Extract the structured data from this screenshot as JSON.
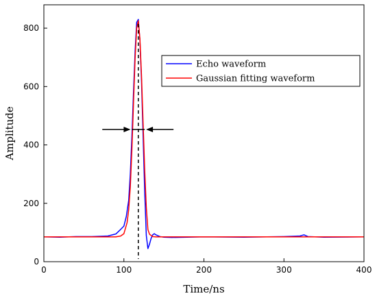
{
  "chart_data": {
    "type": "line",
    "xlabel": "Time/ns",
    "ylabel": "Amplitude",
    "xlim": [
      0,
      400
    ],
    "ylim": [
      0,
      880
    ],
    "xticks": [
      0,
      100,
      200,
      300,
      400
    ],
    "yticks": [
      0,
      200,
      400,
      600,
      800
    ],
    "grid": false,
    "legend_position": "top-right",
    "series": [
      {
        "name": "Echo waveform",
        "color": "#0000ff",
        "x": [
          0,
          20,
          40,
          60,
          80,
          90,
          95,
          100,
          103,
          106,
          108,
          110,
          112,
          114,
          116,
          118,
          120,
          122,
          124,
          126,
          128,
          130,
          132,
          134,
          136,
          138,
          140,
          145,
          150,
          160,
          200,
          250,
          300,
          320,
          325,
          330,
          350,
          400
        ],
        "y": [
          85,
          84,
          86,
          86,
          88,
          95,
          108,
          122,
          155,
          210,
          300,
          430,
          580,
          720,
          820,
          830,
          760,
          620,
          430,
          240,
          90,
          45,
          60,
          80,
          92,
          96,
          92,
          86,
          84,
          83,
          85,
          84,
          86,
          88,
          92,
          86,
          84,
          85
        ]
      },
      {
        "name": "Gaussian fitting waveform",
        "color": "#ff0000",
        "x": [
          0,
          90,
          96,
          100,
          104,
          106,
          108,
          110,
          112,
          114,
          116,
          118,
          120,
          122,
          124,
          126,
          128,
          130,
          132,
          136,
          140,
          400
        ],
        "y": [
          85,
          85,
          88,
          96,
          134,
          178,
          256,
          384,
          542,
          695,
          800,
          825,
          764,
          637,
          474,
          314,
          186,
          110,
          94,
          86,
          85,
          85
        ]
      }
    ],
    "annotations": {
      "peak_line_x": 118,
      "fwhm_y": 453,
      "fwhm_bounds": [
        110,
        126
      ],
      "arrow_left_start_x": 73,
      "arrow_right_start_x": 162
    }
  }
}
